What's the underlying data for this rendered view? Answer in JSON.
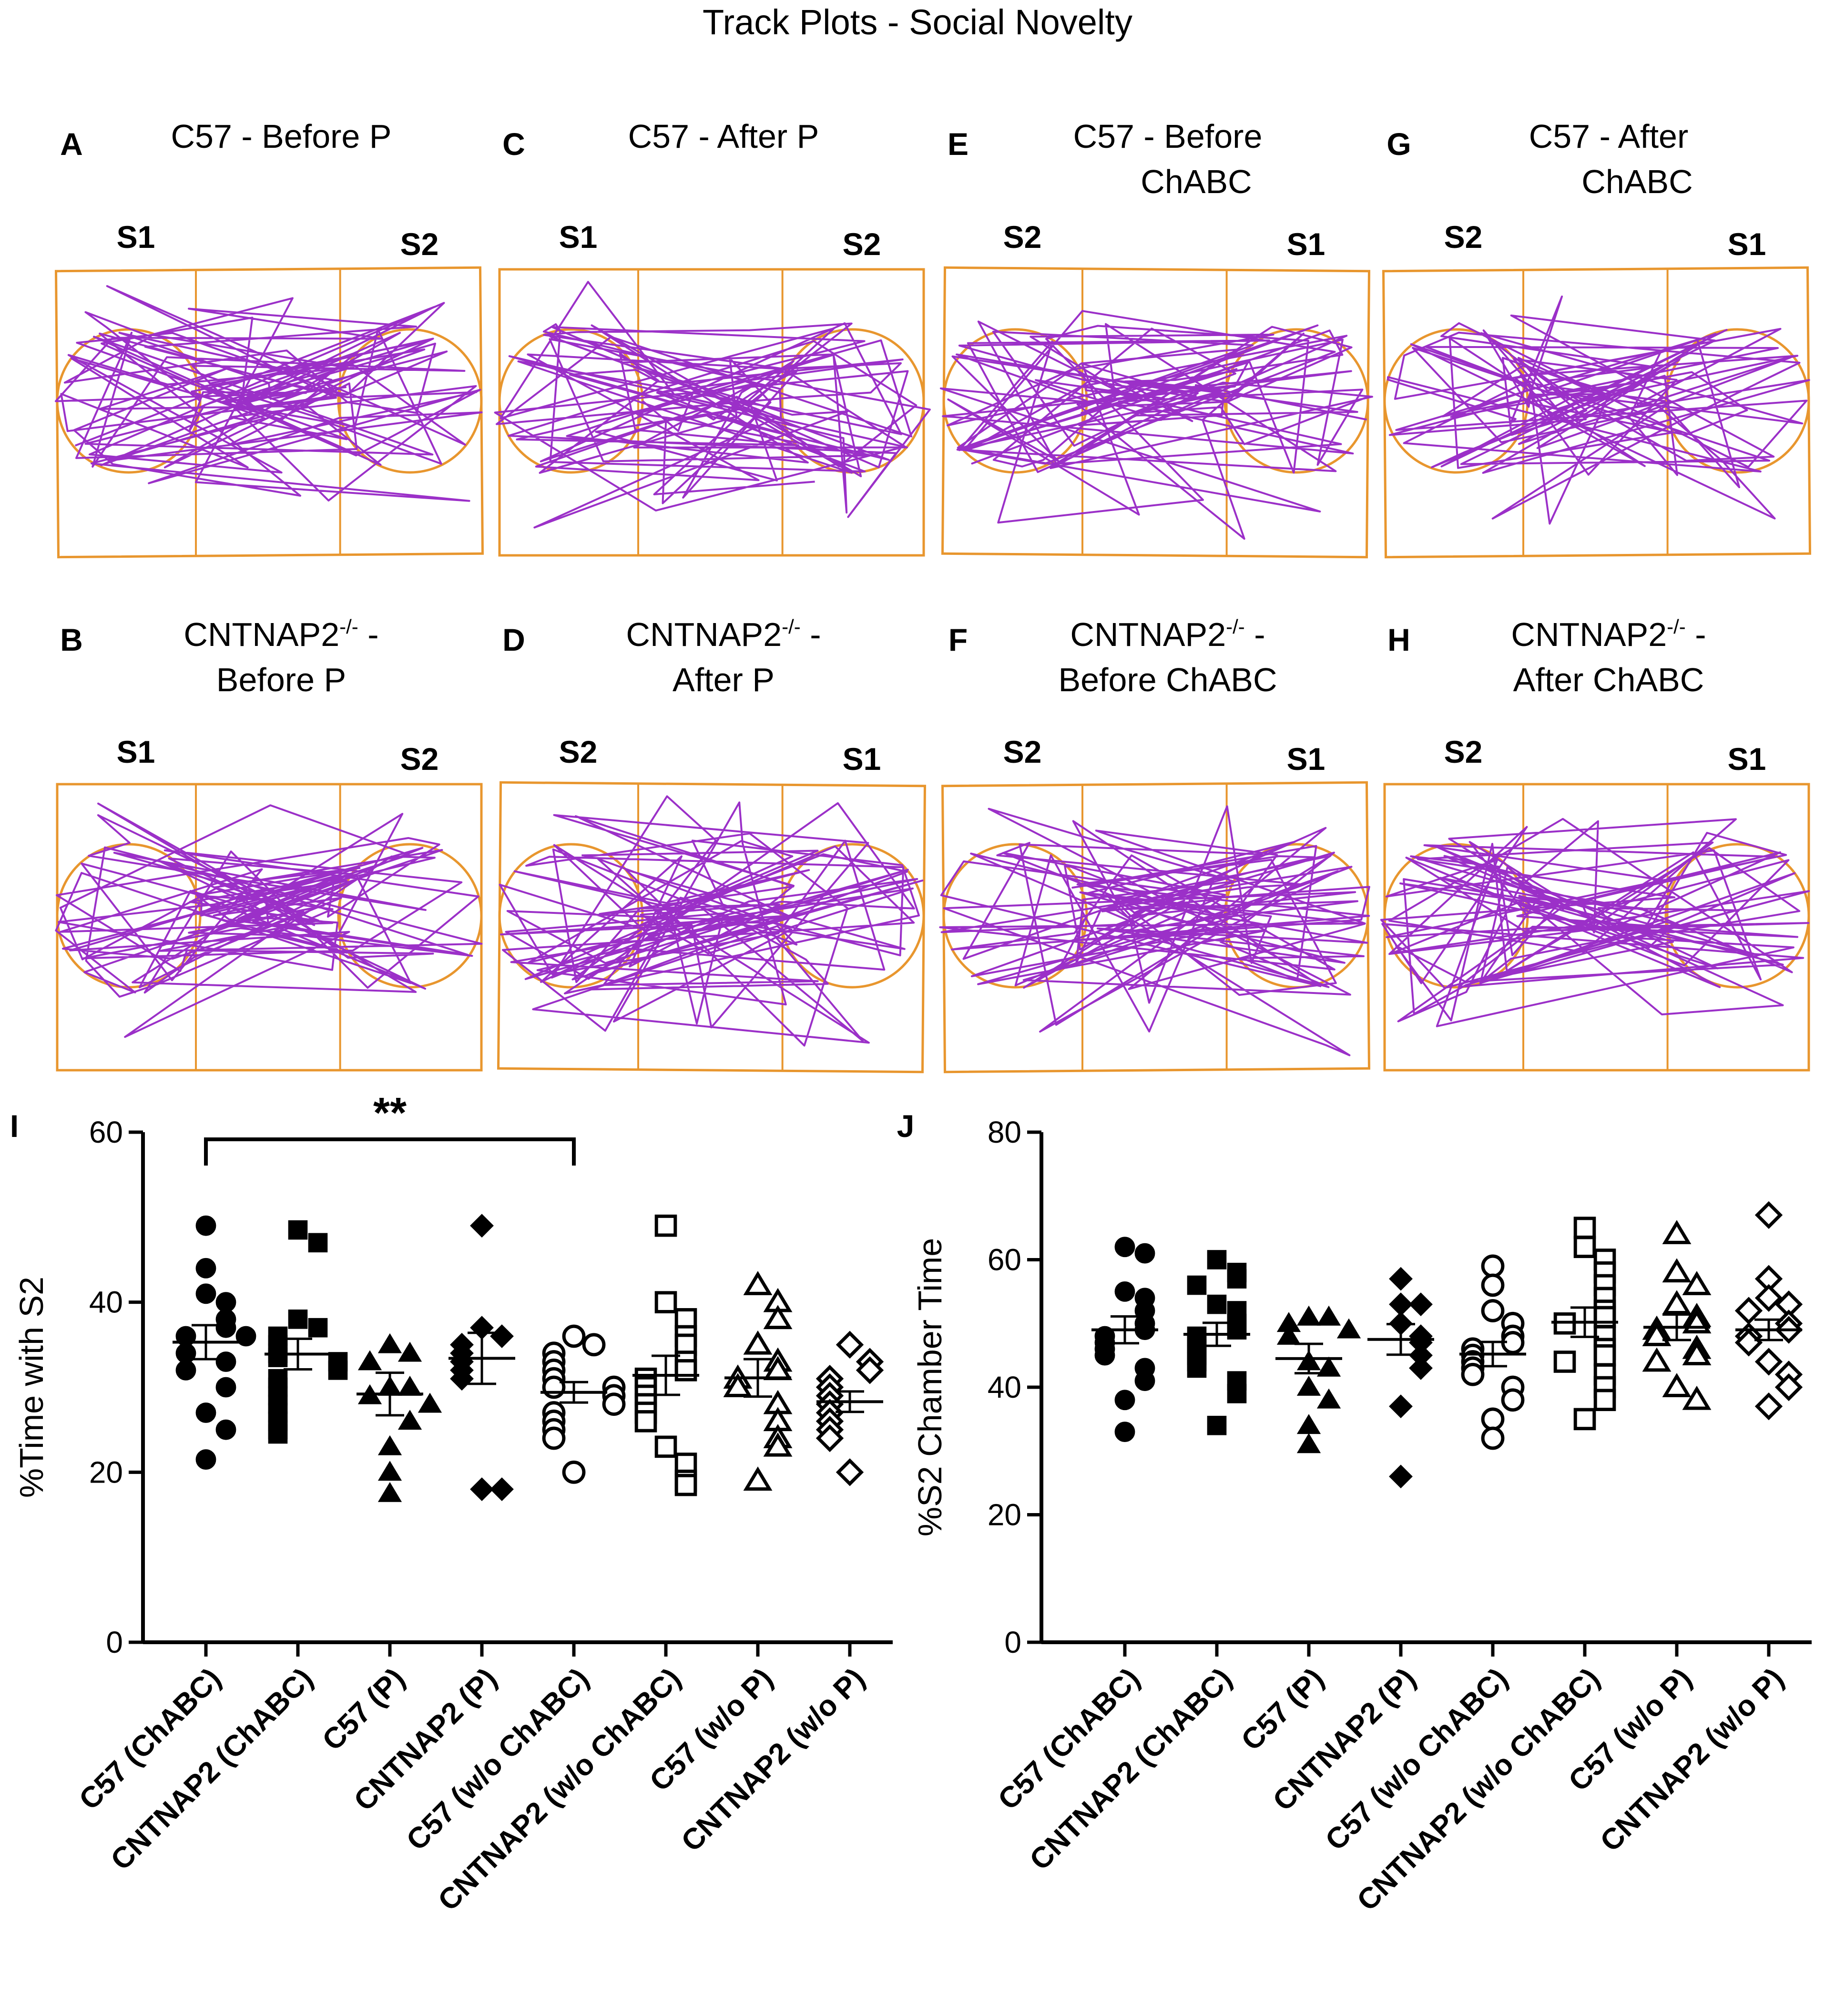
{
  "figure_title": "Track Plots - Social Novelty",
  "colors": {
    "track": "#9b30c8",
    "arena": "#e8962e",
    "marker": "#000000",
    "background": "#ffffff"
  },
  "track_panels": [
    {
      "letter": "A",
      "title_lines": [
        "C57 - Before P"
      ],
      "left_label": "S1",
      "right_label": "S2"
    },
    {
      "letter": "C",
      "title_lines": [
        "C57 - After P"
      ],
      "left_label": "S1",
      "right_label": "S2"
    },
    {
      "letter": "E",
      "title_lines": [
        "C57 - Before",
        "ChABC"
      ],
      "left_label": "S2",
      "right_label": "S1"
    },
    {
      "letter": "G",
      "title_lines": [
        "C57 - After",
        "ChABC"
      ],
      "left_label": "S2",
      "right_label": "S1"
    },
    {
      "letter": "B",
      "title_lines": [
        "CNTNAP2-/- -",
        "Before P"
      ],
      "left_label": "S1",
      "right_label": "S2"
    },
    {
      "letter": "D",
      "title_lines": [
        "CNTNAP2-/- -",
        "After P"
      ],
      "left_label": "S2",
      "right_label": "S1"
    },
    {
      "letter": "F",
      "title_lines": [
        "CNTNAP2-/- -",
        "Before ChABC"
      ],
      "left_label": "S2",
      "right_label": "S1"
    },
    {
      "letter": "H",
      "title_lines": [
        "CNTNAP2-/- -",
        "After ChABC"
      ],
      "left_label": "S2",
      "right_label": "S1"
    }
  ],
  "chart_data": [
    {
      "panel": "I",
      "type": "scatter",
      "ylabel": "%Time with S2",
      "ylim": [
        0,
        60
      ],
      "yticks": [
        0,
        20,
        40,
        60
      ],
      "significance": {
        "label": "**",
        "from": "C57 (ChABC)",
        "to": "C57 (w/o ChABC)"
      },
      "series": [
        {
          "name": "C57 (ChABC)",
          "marker": "circle",
          "filled": true,
          "mean": 35.3,
          "sem": 2.0,
          "values": [
            49,
            44,
            41,
            40,
            38,
            37,
            36,
            36,
            34,
            33,
            32,
            30,
            27,
            25,
            21.5
          ]
        },
        {
          "name": "CNTNAP2 (ChABC)",
          "marker": "square",
          "filled": true,
          "mean": 33.9,
          "sem": 1.8,
          "values": [
            48.5,
            47,
            38,
            37,
            36,
            35,
            34,
            33.5,
            33,
            32,
            31,
            30,
            29,
            28,
            27,
            26,
            25,
            24.5
          ]
        },
        {
          "name": "C57 (P)",
          "marker": "triangle",
          "filled": true,
          "mean": 29.2,
          "sem": 2.5,
          "values": [
            35,
            34,
            33,
            30,
            30,
            29,
            28,
            26,
            23,
            20,
            17.5
          ]
        },
        {
          "name": "CNTNAP2 (P)",
          "marker": "diamond",
          "filled": true,
          "mean": 33.4,
          "sem": 3.0,
          "values": [
            49,
            37,
            36,
            35,
            34,
            33,
            32,
            31,
            18,
            18
          ]
        },
        {
          "name": "C57 (w/o ChABC)",
          "marker": "circle",
          "filled": false,
          "mean": 29.4,
          "sem": 1.2,
          "values": [
            36,
            35,
            34,
            33,
            32,
            31,
            30,
            30,
            29,
            28,
            27,
            26,
            25,
            24,
            20
          ]
        },
        {
          "name": "CNTNAP2 (w/o ChABC)",
          "marker": "square",
          "filled": false,
          "mean": 31.4,
          "sem": 2.3,
          "values": [
            49,
            40,
            38,
            36,
            35,
            33,
            32,
            31,
            30,
            29,
            28,
            27,
            26,
            23,
            21,
            19,
            18.5
          ]
        },
        {
          "name": "C57 (w/o P)",
          "marker": "triangle",
          "filled": false,
          "mean": 31.1,
          "sem": 2.2,
          "values": [
            42,
            40,
            38,
            35,
            33,
            32,
            31,
            30,
            28,
            26,
            24,
            23,
            19
          ]
        },
        {
          "name": "CNTNAP2 (w/o P)",
          "marker": "diamond",
          "filled": false,
          "mean": 28.3,
          "sem": 1.2,
          "values": [
            35,
            33,
            32,
            31,
            30,
            29,
            28,
            27,
            26,
            25,
            24,
            20
          ]
        }
      ]
    },
    {
      "panel": "J",
      "type": "scatter",
      "ylabel": "%S2 Chamber Time",
      "ylim": [
        0,
        80
      ],
      "yticks": [
        0,
        20,
        40,
        60,
        80
      ],
      "series": [
        {
          "name": "C57 (ChABC)",
          "marker": "circle",
          "filled": true,
          "mean": 49,
          "sem": 2.1,
          "values": [
            62,
            61,
            55,
            54,
            52,
            50,
            49,
            48,
            47,
            46,
            45,
            43,
            41,
            38,
            33
          ]
        },
        {
          "name": "CNTNAP2 (ChABC)",
          "marker": "square",
          "filled": true,
          "mean": 48.3,
          "sem": 1.8,
          "values": [
            60,
            58,
            57,
            56,
            53,
            52,
            50,
            49,
            48,
            47,
            46,
            45,
            44,
            43,
            41,
            39,
            34
          ]
        },
        {
          "name": "C57 (P)",
          "marker": "triangle",
          "filled": true,
          "mean": 44.5,
          "sem": 2.3,
          "values": [
            51,
            51,
            50,
            49,
            48,
            44,
            43,
            40,
            38,
            34,
            31
          ]
        },
        {
          "name": "CNTNAP2 (P)",
          "marker": "diamond",
          "filled": true,
          "mean": 47.5,
          "sem": 2.4,
          "values": [
            57,
            53,
            53,
            50,
            48,
            47,
            45,
            43,
            37,
            26
          ]
        },
        {
          "name": "C57 (w/o ChABC)",
          "marker": "circle",
          "filled": false,
          "mean": 45.2,
          "sem": 1.9,
          "values": [
            59,
            56,
            52,
            50,
            48,
            47,
            46,
            45,
            44,
            43,
            42,
            40,
            38,
            35,
            32
          ]
        },
        {
          "name": "CNTNAP2 (w/o ChABC)",
          "marker": "square",
          "filled": false,
          "mean": 50.2,
          "sem": 2.3,
          "values": [
            65,
            62,
            60,
            58,
            56,
            54,
            52,
            51,
            50,
            48,
            46,
            45,
            44,
            42,
            40,
            38,
            35
          ]
        },
        {
          "name": "C57 (w/o P)",
          "marker": "triangle",
          "filled": false,
          "mean": 49.4,
          "sem": 2.0,
          "values": [
            64,
            58,
            56,
            53,
            51,
            50,
            49,
            48,
            46,
            45,
            44,
            40,
            38
          ]
        },
        {
          "name": "CNTNAP2 (w/o P)",
          "marker": "diamond",
          "filled": false,
          "mean": 49,
          "sem": 1.6,
          "values": [
            67,
            57,
            54,
            53,
            52,
            50,
            49,
            48,
            47,
            44,
            42,
            40,
            37
          ]
        }
      ]
    }
  ]
}
